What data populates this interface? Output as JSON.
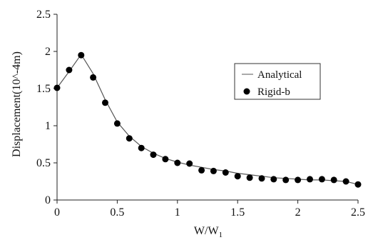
{
  "colors": {
    "background": "#ffffff",
    "axis": "#222222",
    "line": "#555555",
    "marker": "#000000",
    "legend_border": "#333333"
  },
  "chart_data": {
    "type": "line",
    "xlabel": "W/W",
    "xlabel_sub": "1",
    "ylabel": "Displacement(10^-4m)",
    "xlim": [
      0,
      2.5
    ],
    "ylim": [
      0,
      2.5
    ],
    "xticks": [
      "0",
      "0.5",
      "1",
      "1.5",
      "2",
      "2.5"
    ],
    "yticks": [
      "0",
      "0.5",
      "1",
      "1.5",
      "2",
      "2.5"
    ],
    "grid": false,
    "legend_position": "right",
    "series": [
      {
        "name": "Analytical",
        "style": "line",
        "x": [
          0,
          0.1,
          0.2,
          0.3,
          0.4,
          0.5,
          0.6,
          0.7,
          0.8,
          0.9,
          1.0,
          1.1,
          1.2,
          1.3,
          1.4,
          1.5,
          1.6,
          1.7,
          1.8,
          1.9,
          2.0,
          2.1,
          2.2,
          2.3,
          2.4,
          2.5
        ],
        "y": [
          1.51,
          1.73,
          1.96,
          1.7,
          1.35,
          1.05,
          0.86,
          0.72,
          0.63,
          0.56,
          0.51,
          0.47,
          0.44,
          0.41,
          0.39,
          0.36,
          0.34,
          0.32,
          0.3,
          0.29,
          0.28,
          0.27,
          0.27,
          0.26,
          0.25,
          0.21
        ]
      },
      {
        "name": "Rigid-b",
        "style": "marker",
        "x": [
          0,
          0.1,
          0.2,
          0.3,
          0.4,
          0.5,
          0.6,
          0.7,
          0.8,
          0.9,
          1.0,
          1.1,
          1.2,
          1.3,
          1.4,
          1.5,
          1.6,
          1.7,
          1.8,
          1.9,
          2.0,
          2.1,
          2.2,
          2.3,
          2.4,
          2.5
        ],
        "y": [
          1.51,
          1.75,
          1.95,
          1.65,
          1.31,
          1.03,
          0.83,
          0.7,
          0.61,
          0.55,
          0.5,
          0.49,
          0.4,
          0.39,
          0.37,
          0.32,
          0.3,
          0.29,
          0.28,
          0.27,
          0.27,
          0.28,
          0.28,
          0.27,
          0.25,
          0.21
        ]
      }
    ]
  }
}
